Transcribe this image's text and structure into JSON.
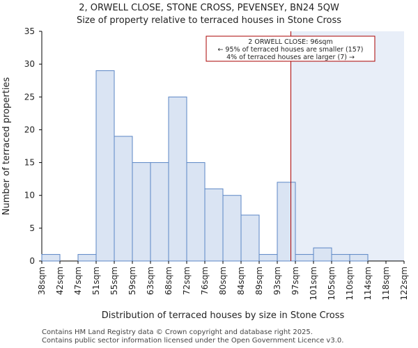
{
  "header": {
    "title_line1": "2, ORWELL CLOSE, STONE CROSS, PEVENSEY, BN24 5QW",
    "title_line2": "Size of property relative to terraced houses in Stone Cross"
  },
  "footer": {
    "line1": "Contains HM Land Registry data © Crown copyright and database right 2025.",
    "line2": "Contains public sector information licensed under the Open Government Licence v3.0."
  },
  "colors": {
    "bar_fill": "#dae4f3",
    "bar_stroke": "#5b86c5",
    "highlight_fill": "#e8eef8",
    "marker_line": "#aa0000",
    "annotation_border": "#aa0000",
    "axis": "#000000"
  },
  "chart_data": {
    "type": "bar",
    "xlabel": "Distribution of terraced houses by size in Stone Cross",
    "ylabel": "Number of terraced properties",
    "ylim": [
      0,
      35
    ],
    "yticks": [
      0,
      5,
      10,
      15,
      20,
      25,
      30,
      35
    ],
    "bin_edges": [
      "38sqm",
      "42sqm",
      "47sqm",
      "51sqm",
      "55sqm",
      "59sqm",
      "63sqm",
      "68sqm",
      "72sqm",
      "76sqm",
      "80sqm",
      "84sqm",
      "89sqm",
      "93sqm",
      "97sqm",
      "101sqm",
      "105sqm",
      "110sqm",
      "114sqm",
      "118sqm",
      "122sqm"
    ],
    "values": [
      1,
      0,
      1,
      29,
      19,
      15,
      15,
      25,
      15,
      11,
      10,
      7,
      1,
      12,
      1,
      2,
      1,
      1,
      0,
      0
    ],
    "marker_bin_position": 13.75,
    "highlight_from_bin_position": 13.75,
    "annotation": {
      "line1": "2 ORWELL CLOSE: 96sqm",
      "line2": "← 95% of terraced houses are smaller (157)",
      "line3": "4% of terraced houses are larger (7) →"
    }
  }
}
